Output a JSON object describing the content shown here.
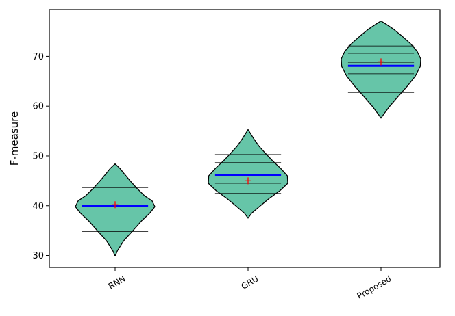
{
  "chart_data": {
    "type": "violin",
    "title": "",
    "xlabel": "",
    "ylabel": "F-measure",
    "ylim": [
      27.6,
      79.4
    ],
    "yticks": [
      30,
      40,
      50,
      60,
      70
    ],
    "categories": [
      "RNN",
      "GRU",
      "Proposed"
    ],
    "grid": false,
    "colors": {
      "violin_fill": "#66c5a8",
      "violin_edge": "#000000",
      "median_line": "#0000ff",
      "mean_marker": "#ff0000",
      "quantile_lines": "#000000"
    },
    "violins": [
      {
        "category": "RNN",
        "min": 29.9,
        "max": 48.4,
        "median": 39.9,
        "mean": 40.2,
        "lines": [
          34.8,
          40.2,
          43.6
        ],
        "density": [
          [
            29.9,
            0
          ],
          [
            31,
            0.06
          ],
          [
            33,
            0.22
          ],
          [
            35,
            0.45
          ],
          [
            37,
            0.67
          ],
          [
            38.5,
            0.87
          ],
          [
            39.8,
            1.0
          ],
          [
            41,
            0.93
          ],
          [
            42,
            0.74
          ],
          [
            43.5,
            0.55
          ],
          [
            45,
            0.38
          ],
          [
            46.5,
            0.22
          ],
          [
            47.5,
            0.12
          ],
          [
            48.4,
            0
          ]
        ]
      },
      {
        "category": "GRU",
        "min": 37.5,
        "max": 55.3,
        "median": 46.1,
        "mean": 45.0,
        "lines": [
          42.5,
          44.5,
          45.0,
          48.7,
          50.3
        ],
        "density": [
          [
            37.5,
            0
          ],
          [
            38.5,
            0.09
          ],
          [
            40,
            0.31
          ],
          [
            41.5,
            0.54
          ],
          [
            43,
            0.8
          ],
          [
            44.5,
            1.0
          ],
          [
            46,
            0.99
          ],
          [
            47.5,
            0.82
          ],
          [
            49,
            0.62
          ],
          [
            50.5,
            0.44
          ],
          [
            52,
            0.27
          ],
          [
            53.5,
            0.14
          ],
          [
            54.5,
            0.06
          ],
          [
            55.3,
            0
          ]
        ]
      },
      {
        "category": "Proposed",
        "min": 57.6,
        "max": 77.1,
        "median": 68.1,
        "mean": 68.9,
        "lines": [
          62.7,
          66.5,
          68.8,
          70.6,
          72.1
        ],
        "density": [
          [
            57.6,
            0
          ],
          [
            58.5,
            0.08
          ],
          [
            60,
            0.22
          ],
          [
            62,
            0.44
          ],
          [
            64,
            0.66
          ],
          [
            66,
            0.86
          ],
          [
            68,
            0.99
          ],
          [
            69.5,
            1.0
          ],
          [
            71,
            0.91
          ],
          [
            72.5,
            0.75
          ],
          [
            74,
            0.54
          ],
          [
            75.5,
            0.31
          ],
          [
            76.5,
            0.12
          ],
          [
            77.1,
            0
          ]
        ]
      }
    ]
  }
}
